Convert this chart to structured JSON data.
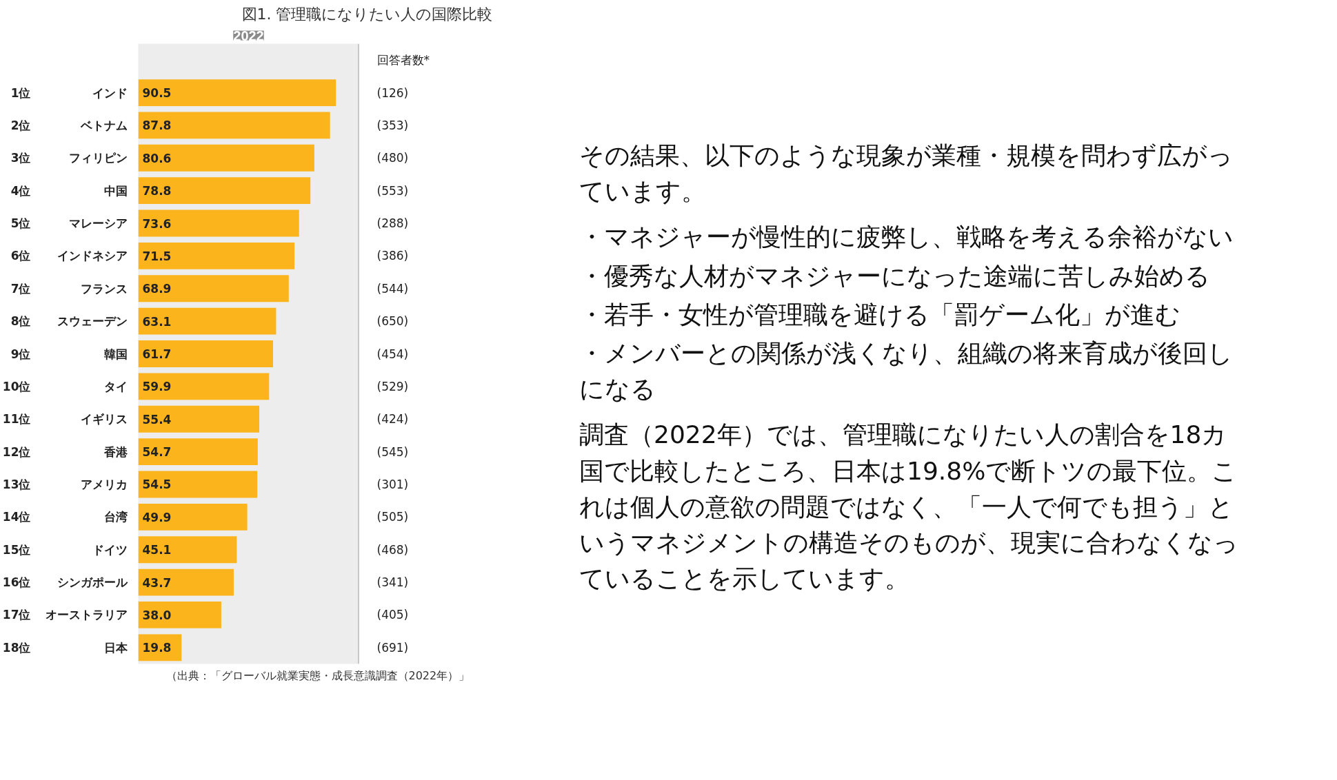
{
  "chart_data": {
    "type": "bar",
    "orientation": "horizontal",
    "title": "図1. 管理職になりたい人の国際比較",
    "subtitle": "2022",
    "categories": [
      "インド",
      "ベトナム",
      "フィリピン",
      "中国",
      "マレーシア",
      "インドネシア",
      "フランス",
      "スウェーデン",
      "韓国",
      "タイ",
      "イギリス",
      "香港",
      "アメリカ",
      "台湾",
      "ドイツ",
      "シンガポール",
      "オーストラリア",
      "日本"
    ],
    "values": [
      90.5,
      87.8,
      80.6,
      78.8,
      73.6,
      71.5,
      68.9,
      63.1,
      61.7,
      59.9,
      55.4,
      54.7,
      54.5,
      49.9,
      45.1,
      43.7,
      38.0,
      19.8
    ],
    "value_labels": [
      "90.5",
      "87.8",
      "80.6",
      "78.8",
      "73.6",
      "71.5",
      "68.9",
      "63.1",
      "61.7",
      "59.9",
      "55.4",
      "54.7",
      "54.5",
      "49.9",
      "45.1",
      "43.7",
      "38.0",
      "19.8"
    ],
    "color": "#fbb41c",
    "xlim": [
      0,
      101
    ],
    "annotations": [
      "1位",
      "(126)",
      "2位",
      "(353)",
      "3位",
      "(480)",
      "4位",
      "(553)",
      "5位",
      "(288)",
      "6位",
      "(386)",
      "7位",
      "(544)",
      "8位",
      "(650)",
      "9位",
      "(454)",
      "10位",
      "(529)",
      "11位",
      "(424)",
      "12位",
      "(545)",
      "13位",
      "(301)",
      "14位",
      "(505)",
      "15位",
      "(468)",
      "16位",
      "(341)",
      "17位",
      "(405)",
      "18位",
      "(691)",
      "回答者数*",
      "（出典：「グローバル就業実態・成長意識調査（2022年）」",
      "その結果、以下のような現象が業種・規模を問わず広がっています。",
      "・マネジャーが慢性的に疲弊し、戦略を考える余裕がない",
      "・優秀な人材がマネジャーになった途端に苦しみ始める",
      "・若手・女性が管理職を避ける「罰ゲーム化」が進む",
      "・メンバーとの関係が浅くなり、組織の将来育成が後回しになる",
      "調査（2022年）では、管理職になりたい人の割合を18カ国で比較したところ、日本は19.8%で断トツの最下位。これは個人の意欲の問題ではなく、「一人で何でも担う」というマネジメントの構造そのものが、現実に合わなくなっていることを示しています。"
    ]
  }
}
